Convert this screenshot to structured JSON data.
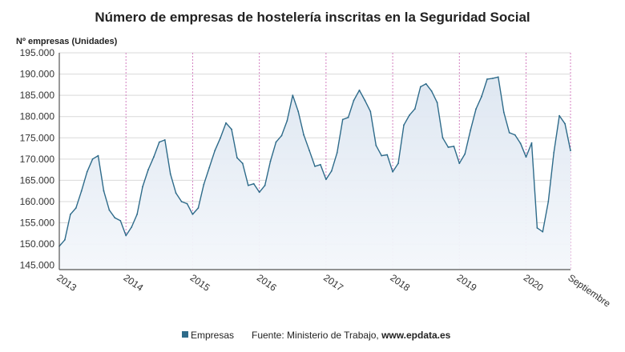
{
  "chart_data": {
    "type": "area",
    "title": "Número de empresas de hostelería inscritas en la Seguridad Social",
    "unit_label": "Nº empresas (Unidades)",
    "ylim": [
      144000,
      195000
    ],
    "y_ticks": [
      145000,
      150000,
      155000,
      160000,
      165000,
      170000,
      175000,
      180000,
      185000,
      190000,
      195000
    ],
    "y_tick_labels": [
      "145.000",
      "150.000",
      "155.000",
      "160.000",
      "165.000",
      "170.000",
      "175.000",
      "180.000",
      "185.000",
      "190.000",
      "195.000"
    ],
    "x_start": "2013-01",
    "x_end": "2020-09",
    "x_tick_labels": [
      "2013",
      "2014",
      "2015",
      "2016",
      "2017",
      "2018",
      "2019",
      "2020",
      "Septiembre"
    ],
    "x_tick_months": [
      "2013-01",
      "2014-01",
      "2015-01",
      "2016-01",
      "2017-01",
      "2018-01",
      "2019-01",
      "2020-01",
      "2020-09"
    ],
    "series": [
      {
        "name": "Empresas",
        "color": "#2e6b8a",
        "x": [
          "2013-01",
          "2013-02",
          "2013-03",
          "2013-04",
          "2013-05",
          "2013-06",
          "2013-07",
          "2013-08",
          "2013-09",
          "2013-10",
          "2013-11",
          "2013-12",
          "2014-01",
          "2014-02",
          "2014-03",
          "2014-04",
          "2014-05",
          "2014-06",
          "2014-07",
          "2014-08",
          "2014-09",
          "2014-10",
          "2014-11",
          "2014-12",
          "2015-01",
          "2015-02",
          "2015-03",
          "2015-04",
          "2015-05",
          "2015-06",
          "2015-07",
          "2015-08",
          "2015-09",
          "2015-10",
          "2015-11",
          "2015-12",
          "2016-01",
          "2016-02",
          "2016-03",
          "2016-04",
          "2016-05",
          "2016-06",
          "2016-07",
          "2016-08",
          "2016-09",
          "2016-10",
          "2016-11",
          "2016-12",
          "2017-01",
          "2017-02",
          "2017-03",
          "2017-04",
          "2017-05",
          "2017-06",
          "2017-07",
          "2017-08",
          "2017-09",
          "2017-10",
          "2017-11",
          "2017-12",
          "2018-01",
          "2018-02",
          "2018-03",
          "2018-04",
          "2018-05",
          "2018-06",
          "2018-07",
          "2018-08",
          "2018-09",
          "2018-10",
          "2018-11",
          "2018-12",
          "2019-01",
          "2019-02",
          "2019-03",
          "2019-04",
          "2019-05",
          "2019-06",
          "2019-07",
          "2019-08",
          "2019-09",
          "2019-10",
          "2019-11",
          "2019-12",
          "2020-01",
          "2020-02",
          "2020-03",
          "2020-04",
          "2020-05",
          "2020-06",
          "2020-07",
          "2020-08",
          "2020-09"
        ],
        "values": [
          149500,
          151000,
          157000,
          158500,
          162500,
          167000,
          170000,
          170800,
          162500,
          158000,
          156200,
          155500,
          152000,
          154000,
          157000,
          163500,
          167500,
          170500,
          174000,
          174500,
          166500,
          162000,
          160000,
          159500,
          157000,
          158500,
          164000,
          168000,
          172000,
          175000,
          178500,
          177000,
          170300,
          169000,
          163800,
          164200,
          162200,
          163800,
          169500,
          174000,
          175500,
          179000,
          185000,
          181200,
          175700,
          172000,
          168300,
          168700,
          165200,
          167200,
          171500,
          179300,
          179800,
          183800,
          186200,
          183800,
          181200,
          173200,
          170800,
          171000,
          167000,
          169000,
          178000,
          180300,
          181800,
          187000,
          187700,
          186000,
          183300,
          175000,
          172800,
          173000,
          169000,
          171200,
          176800,
          181800,
          184700,
          188800,
          189000,
          189300,
          181000,
          176200,
          175700,
          173700,
          170500,
          173800,
          153800,
          152900,
          160000,
          171500,
          180200,
          178300,
          172000
        ]
      }
    ],
    "legend": "bottom",
    "grid": true,
    "source_prefix": "Fuente: Ministerio de Trabajo, ",
    "source_site": "www.epdata.es"
  }
}
